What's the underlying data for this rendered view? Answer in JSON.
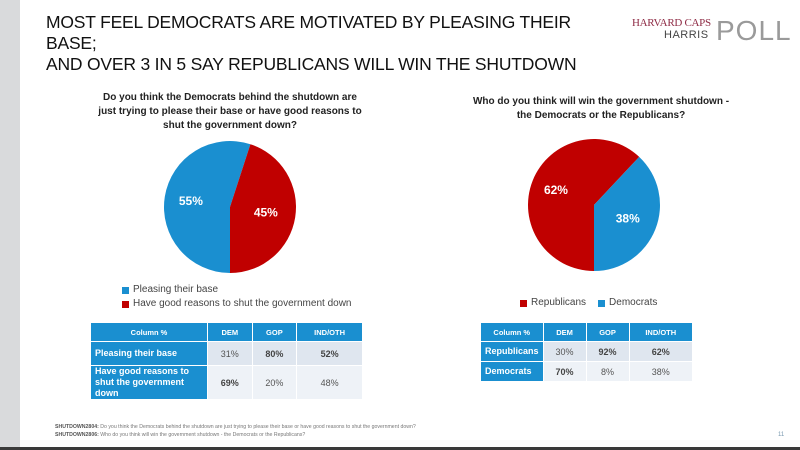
{
  "slide": {
    "title_line1": "MOST FEEL DEMOCRATS ARE MOTIVATED BY PLEASING THEIR BASE;",
    "title_line2": "AND OVER 3 IN 5 SAY REPUBLICANS WILL WIN THE SHUTDOWN",
    "logo": {
      "top": "HARVARD CAPS",
      "middle": "HARRIS",
      "big": "POLL"
    },
    "page_number": "11",
    "footnotes": [
      {
        "code": "SHUTDOWN2804:",
        "text": " Do you think the Democrats behind the shutdown are just trying to please their base or have good reasons to shut the government down?"
      },
      {
        "code": "SHUTDOWN2806:",
        "text": " Who do you think will win the government shutdown - the Democrats or the Republicans?"
      }
    ]
  },
  "colors": {
    "blue": "#1a8fd0",
    "red": "#c00000"
  },
  "chart_data": [
    {
      "type": "pie",
      "title": "Do you think the Democrats behind the shutdown are just trying to please their base or have good reasons to shut the government down?",
      "title_lines": [
        "Do you think the Democrats behind the shutdown are",
        "just trying to please their base or have good reasons to",
        "shut the government down?"
      ],
      "slices": [
        {
          "label": "Pleasing their base",
          "value": 55,
          "display": "55%",
          "color": "#1a8fd0"
        },
        {
          "label": "Have good reasons to shut the government down",
          "value": 45,
          "display": "45%",
          "color": "#c00000"
        }
      ],
      "legend": [
        "Pleasing their base",
        "Have good reasons to shut the government down"
      ],
      "legend_position": "bottom"
    },
    {
      "type": "pie",
      "title": "Who do you think will win the government shutdown - the Democrats or the Republicans?",
      "title_lines": [
        "Who do you think will win the government shutdown -",
        "the Democrats or the Republicans?"
      ],
      "slices": [
        {
          "label": "Republicans",
          "value": 62,
          "display": "62%",
          "color": "#c00000"
        },
        {
          "label": "Democrats",
          "value": 38,
          "display": "38%",
          "color": "#1a8fd0"
        }
      ],
      "legend": [
        "Republicans",
        "Democrats"
      ],
      "legend_position": "bottom"
    },
    {
      "type": "table",
      "headers": [
        "Column %",
        "DEM",
        "GOP",
        "IND/OTH"
      ],
      "rows": [
        {
          "label": "Pleasing their base",
          "values": [
            "31%",
            "80%",
            "52%"
          ],
          "bold": [
            false,
            true,
            true
          ]
        },
        {
          "label": "Have good reasons to shut the government down",
          "values": [
            "69%",
            "20%",
            "48%"
          ],
          "bold": [
            true,
            false,
            false
          ]
        }
      ]
    },
    {
      "type": "table",
      "headers": [
        "Column %",
        "DEM",
        "GOP",
        "IND/OTH"
      ],
      "rows": [
        {
          "label": "Republicans",
          "values": [
            "30%",
            "92%",
            "62%"
          ],
          "bold": [
            false,
            true,
            true
          ]
        },
        {
          "label": "Democrats",
          "values": [
            "70%",
            "8%",
            "38%"
          ],
          "bold": [
            true,
            false,
            false
          ]
        }
      ]
    }
  ]
}
